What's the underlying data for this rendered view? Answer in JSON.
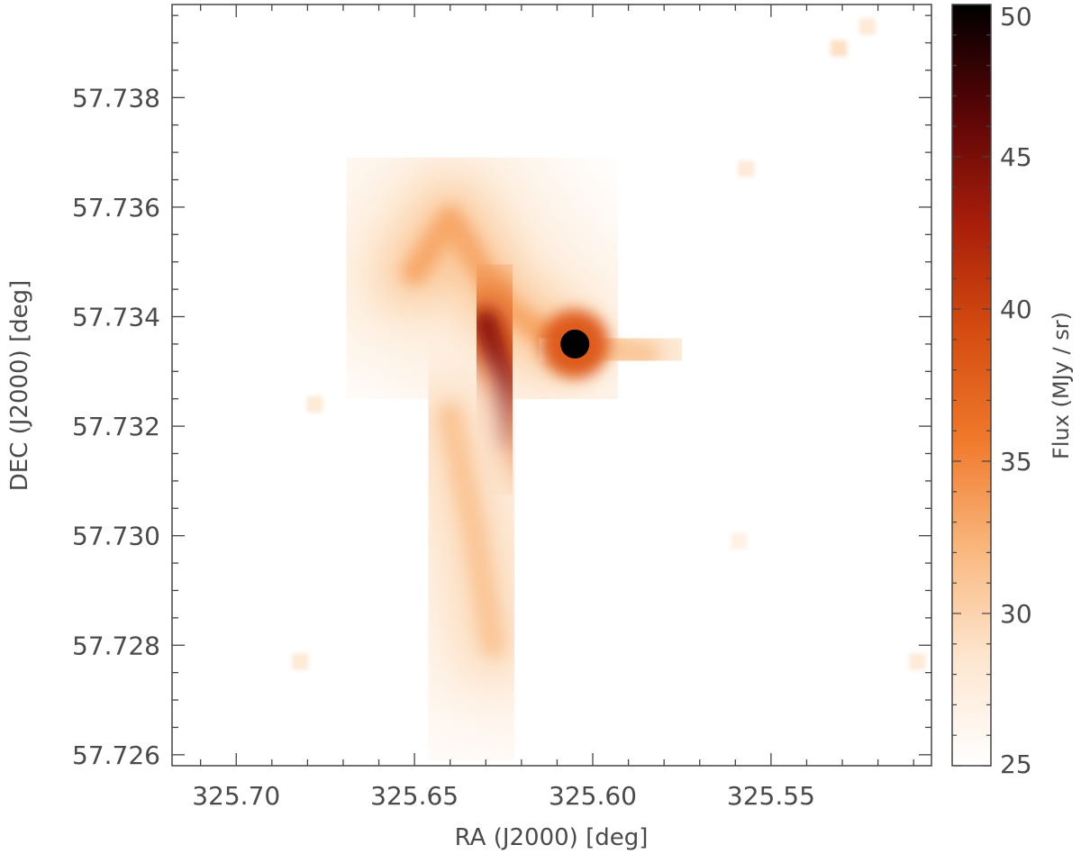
{
  "chart_data": {
    "type": "heatmap",
    "title": "",
    "xlabel": "RA (J2000) [deg]",
    "ylabel": "DEC (J2000) [deg]",
    "x_reversed": true,
    "xlim": [
      325.718,
      325.505
    ],
    "ylim": [
      57.7258,
      57.7397
    ],
    "x_ticks": [
      325.7,
      325.65,
      325.6,
      325.55
    ],
    "x_tick_labels": [
      "325.70",
      "325.65",
      "325.60",
      "325.55"
    ],
    "y_ticks": [
      57.726,
      57.728,
      57.73,
      57.732,
      57.734,
      57.736,
      57.738
    ],
    "y_tick_labels": [
      "57.726",
      "57.728",
      "57.730",
      "57.732",
      "57.734",
      "57.736",
      "57.738"
    ],
    "colorbar": {
      "label": "Flux (MJy / sr)",
      "range": [
        25,
        50
      ],
      "ticks": [
        25,
        30,
        35,
        40,
        45,
        50
      ],
      "tick_labels": [
        "25",
        "30",
        "35",
        "40",
        "45",
        "50"
      ],
      "colormap": [
        "#ffffff",
        "#fde6cf",
        "#f9b77d",
        "#f0782b",
        "#d44c10",
        "#a71d0a",
        "#5a0506",
        "#000000"
      ]
    },
    "bright_source": {
      "ra": 325.605,
      "dec": 57.7335,
      "flux": 50
    },
    "point_sources": [
      {
        "ra": 325.531,
        "dec": 57.7389,
        "flux": 29
      },
      {
        "ra": 325.523,
        "dec": 57.7393,
        "flux": 28
      },
      {
        "ra": 325.557,
        "dec": 57.7367,
        "flux": 28
      },
      {
        "ra": 325.678,
        "dec": 57.7324,
        "flux": 28
      },
      {
        "ra": 325.559,
        "dec": 57.7299,
        "flux": 27
      },
      {
        "ra": 325.682,
        "dec": 57.7277,
        "flux": 28
      },
      {
        "ra": 325.509,
        "dec": 57.7277,
        "flux": 28
      }
    ],
    "emission_ridges": [
      {
        "name_hint": "upper-left arm",
        "path": [
          [
            325.65,
            57.7348
          ],
          [
            325.64,
            57.7358
          ],
          [
            325.625,
            57.7342
          ],
          [
            325.612,
            57.7336
          ]
        ],
        "peak_flux": 33
      },
      {
        "name_hint": "central bar",
        "path": [
          [
            325.63,
            57.7339
          ],
          [
            325.625,
            57.7328
          ],
          [
            325.627,
            57.7318
          ]
        ],
        "peak_flux": 44
      },
      {
        "name_hint": "lower arm",
        "path": [
          [
            325.64,
            57.7322
          ],
          [
            325.633,
            57.73
          ],
          [
            325.628,
            57.728
          ]
        ],
        "peak_flux": 31
      },
      {
        "name_hint": "east spur",
        "path": [
          [
            325.605,
            57.7335
          ],
          [
            325.585,
            57.7333
          ]
        ],
        "peak_flux": 31
      }
    ],
    "grid": false
  }
}
